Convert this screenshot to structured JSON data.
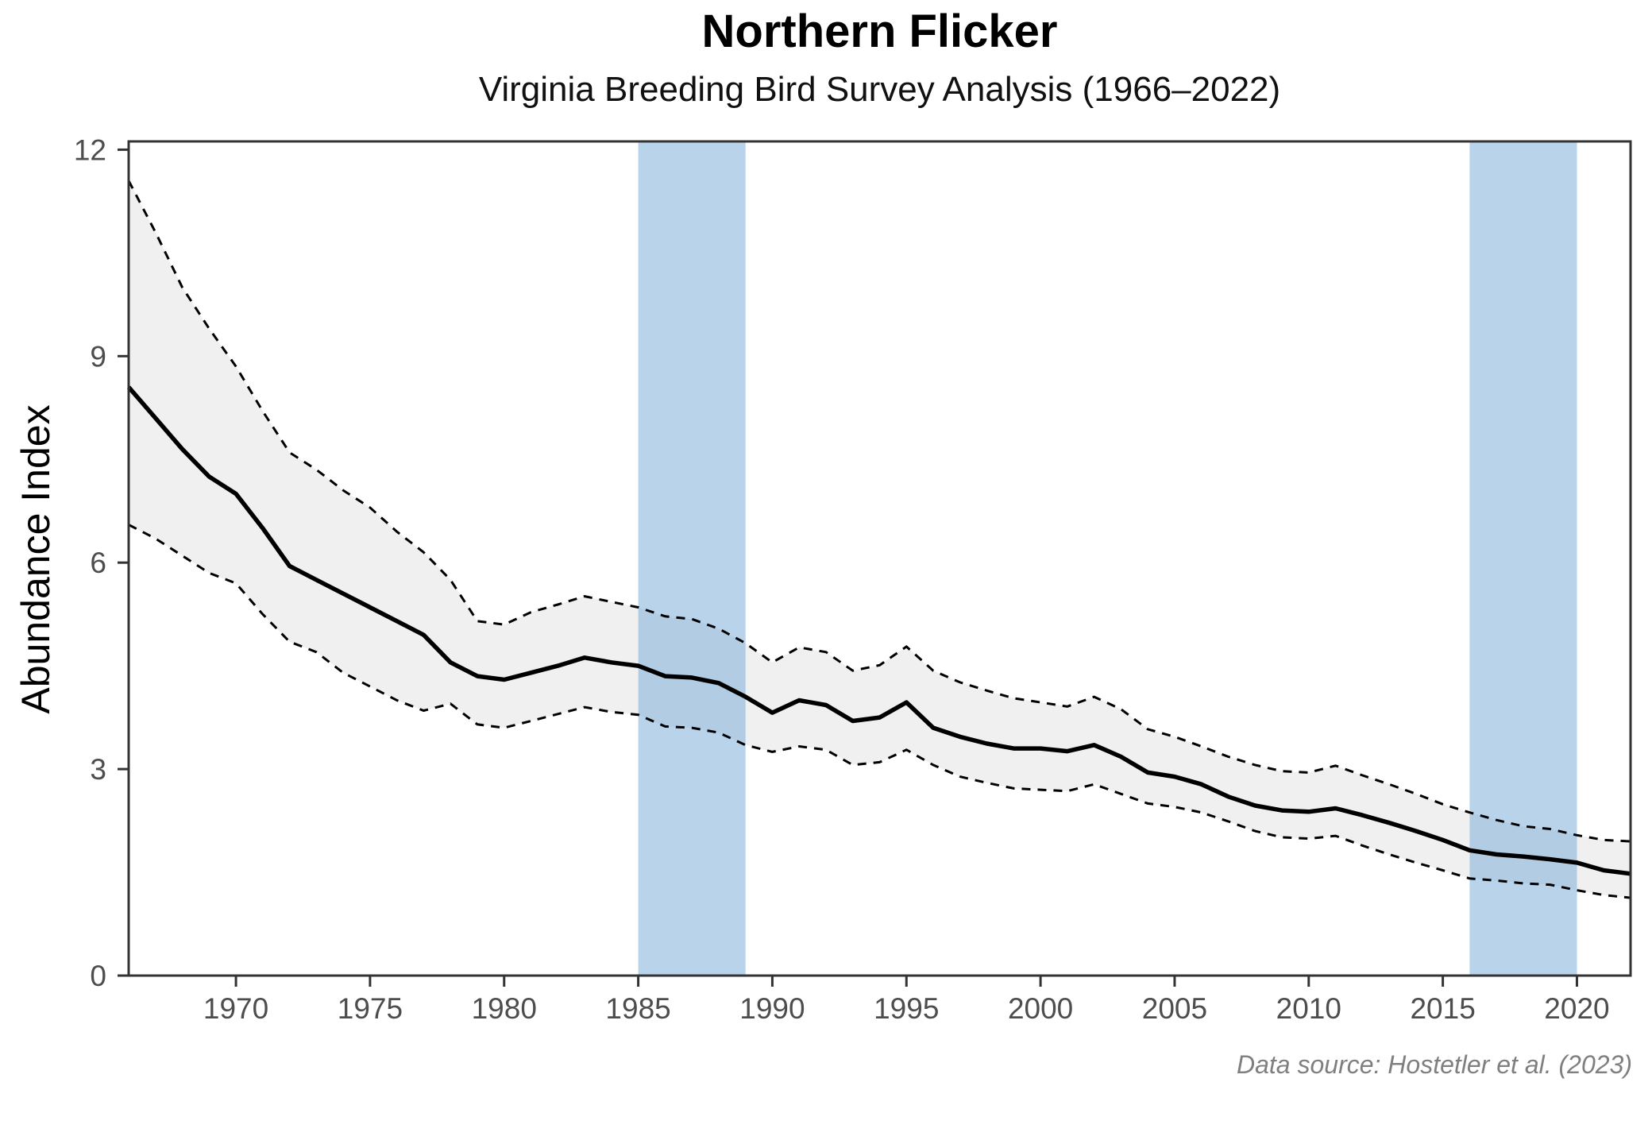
{
  "header": {
    "title": "Northern Flicker",
    "subtitle": "Virginia Breeding Bird Survey Analysis (1966–2022)"
  },
  "chart_data": {
    "type": "line",
    "title": "Northern Flicker",
    "subtitle": "Virginia Breeding Bird Survey Analysis (1966–2022)",
    "xlabel": "",
    "ylabel": "Abundance Index",
    "caption": "Data source: Hostetler et al. (2023)",
    "xlim": [
      1966,
      2022
    ],
    "ylim": [
      0,
      12
    ],
    "y_top_display": 12.12,
    "x_ticks": [
      1970,
      1975,
      1980,
      1985,
      1990,
      1995,
      2000,
      2005,
      2010,
      2015,
      2020
    ],
    "y_ticks": [
      0,
      3,
      6,
      9,
      12
    ],
    "grid": false,
    "legend": "none",
    "x": [
      1966,
      1967,
      1968,
      1969,
      1970,
      1971,
      1972,
      1973,
      1974,
      1975,
      1976,
      1977,
      1978,
      1979,
      1980,
      1981,
      1982,
      1983,
      1984,
      1985,
      1986,
      1987,
      1988,
      1989,
      1990,
      1991,
      1992,
      1993,
      1994,
      1995,
      1996,
      1997,
      1998,
      1999,
      2000,
      2001,
      2002,
      2003,
      2004,
      2005,
      2006,
      2007,
      2008,
      2009,
      2010,
      2011,
      2012,
      2013,
      2014,
      2015,
      2016,
      2017,
      2018,
      2019,
      2020,
      2021,
      2022
    ],
    "series": [
      {
        "name": "Abundance index (trend)",
        "style": "solid",
        "values": [
          8.55,
          8.1,
          7.65,
          7.25,
          7.0,
          6.5,
          5.95,
          5.75,
          5.55,
          5.35,
          5.15,
          4.95,
          4.55,
          4.35,
          4.3,
          4.4,
          4.5,
          4.62,
          4.55,
          4.5,
          4.35,
          4.33,
          4.25,
          4.05,
          3.82,
          4.0,
          3.93,
          3.7,
          3.75,
          3.97,
          3.6,
          3.47,
          3.37,
          3.3,
          3.3,
          3.26,
          3.35,
          3.18,
          2.95,
          2.89,
          2.78,
          2.6,
          2.47,
          2.4,
          2.38,
          2.43,
          2.33,
          2.22,
          2.1,
          1.97,
          1.82,
          1.76,
          1.73,
          1.69,
          1.64,
          1.53,
          1.48
        ]
      },
      {
        "name": "CI lower (dashed)",
        "style": "dashed",
        "values": [
          6.55,
          6.35,
          6.1,
          5.85,
          5.7,
          5.25,
          4.85,
          4.7,
          4.4,
          4.2,
          4.0,
          3.85,
          3.95,
          3.65,
          3.6,
          3.7,
          3.8,
          3.9,
          3.83,
          3.79,
          3.62,
          3.6,
          3.53,
          3.35,
          3.25,
          3.33,
          3.28,
          3.06,
          3.1,
          3.28,
          3.06,
          2.89,
          2.8,
          2.72,
          2.7,
          2.68,
          2.78,
          2.64,
          2.5,
          2.45,
          2.37,
          2.24,
          2.1,
          2.01,
          1.99,
          2.03,
          1.89,
          1.76,
          1.64,
          1.53,
          1.41,
          1.38,
          1.34,
          1.32,
          1.24,
          1.17,
          1.13
        ]
      },
      {
        "name": "CI upper (dashed)",
        "style": "dashed",
        "values": [
          11.55,
          10.8,
          10.0,
          9.4,
          8.85,
          8.2,
          7.6,
          7.35,
          7.05,
          6.8,
          6.45,
          6.15,
          5.75,
          5.15,
          5.1,
          5.28,
          5.39,
          5.51,
          5.43,
          5.35,
          5.22,
          5.18,
          5.04,
          4.83,
          4.55,
          4.77,
          4.7,
          4.43,
          4.51,
          4.78,
          4.43,
          4.26,
          4.14,
          4.03,
          3.97,
          3.91,
          4.05,
          3.87,
          3.58,
          3.47,
          3.33,
          3.18,
          3.06,
          2.97,
          2.95,
          3.05,
          2.91,
          2.78,
          2.64,
          2.49,
          2.37,
          2.26,
          2.17,
          2.13,
          2.04,
          1.97,
          1.95
        ]
      }
    ],
    "highlight_bands": [
      {
        "from": 1985,
        "to": 1989
      },
      {
        "from": 2016,
        "to": 2020
      }
    ],
    "colors": {
      "line": "#000000",
      "ci_line": "#000000",
      "ribbon": "#f0f0f0",
      "band": "rgba(127,174,218,0.55)",
      "axis": "#333333",
      "tick_label": "#4d4d4d",
      "caption": "#7f7f7f"
    }
  }
}
